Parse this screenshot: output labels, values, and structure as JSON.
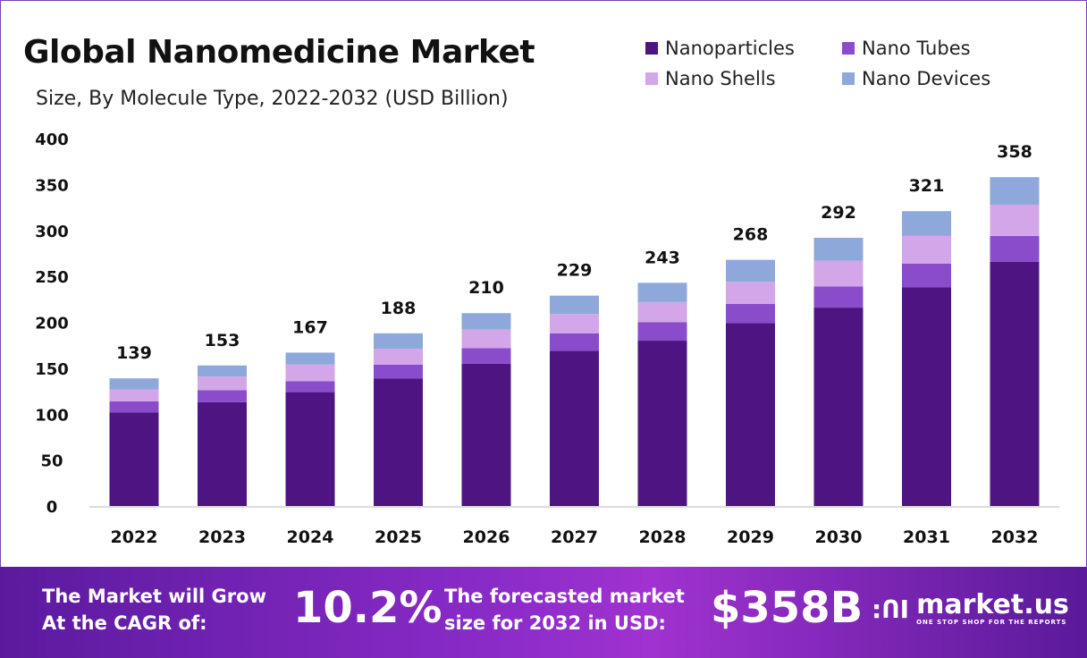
{
  "chart_data": {
    "type": "bar",
    "stacked": true,
    "title": "Global Nanomedicine Market",
    "subtitle": "Size, By Molecule Type, 2022-2032 (USD Billion)",
    "xlabel": "",
    "ylabel": "",
    "ylim": [
      0,
      400
    ],
    "yticks": [
      0,
      50,
      100,
      150,
      200,
      250,
      300,
      350,
      400
    ],
    "grid": false,
    "legend_position": "top-right",
    "categories": [
      "2022",
      "2023",
      "2024",
      "2025",
      "2026",
      "2027",
      "2028",
      "2029",
      "2030",
      "2031",
      "2032"
    ],
    "series": [
      {
        "name": "Nanoparticles",
        "color": "#4e1582",
        "values": [
          102,
          113,
          124,
          139,
          155,
          169,
          180,
          199,
          216,
          238,
          266
        ]
      },
      {
        "name": "Nano Tubes",
        "color": "#8b4ccc",
        "values": [
          12,
          13,
          12,
          15,
          17,
          19,
          20,
          21,
          23,
          26,
          28
        ]
      },
      {
        "name": "Nano Shells",
        "color": "#d3a6ea",
        "values": [
          13,
          15,
          18,
          17,
          20,
          21,
          22,
          24,
          28,
          30,
          34
        ]
      },
      {
        "name": "Nano Devices",
        "color": "#8fa8dc",
        "values": [
          12,
          12,
          13,
          17,
          18,
          20,
          21,
          24,
          25,
          27,
          30
        ]
      }
    ],
    "totals": [
      139,
      153,
      167,
      188,
      210,
      229,
      243,
      268,
      292,
      321,
      358
    ]
  },
  "banner": {
    "cagr_label_1": "The Market will Grow",
    "cagr_label_2": "At the CAGR of:",
    "cagr_value": "10.2%",
    "forecast_label_1": "The forecasted market",
    "forecast_label_2": "size for 2032 in USD:",
    "forecast_value": "$358B",
    "brand": "market.us",
    "brand_tagline": "ONE STOP SHOP FOR THE REPORTS"
  }
}
